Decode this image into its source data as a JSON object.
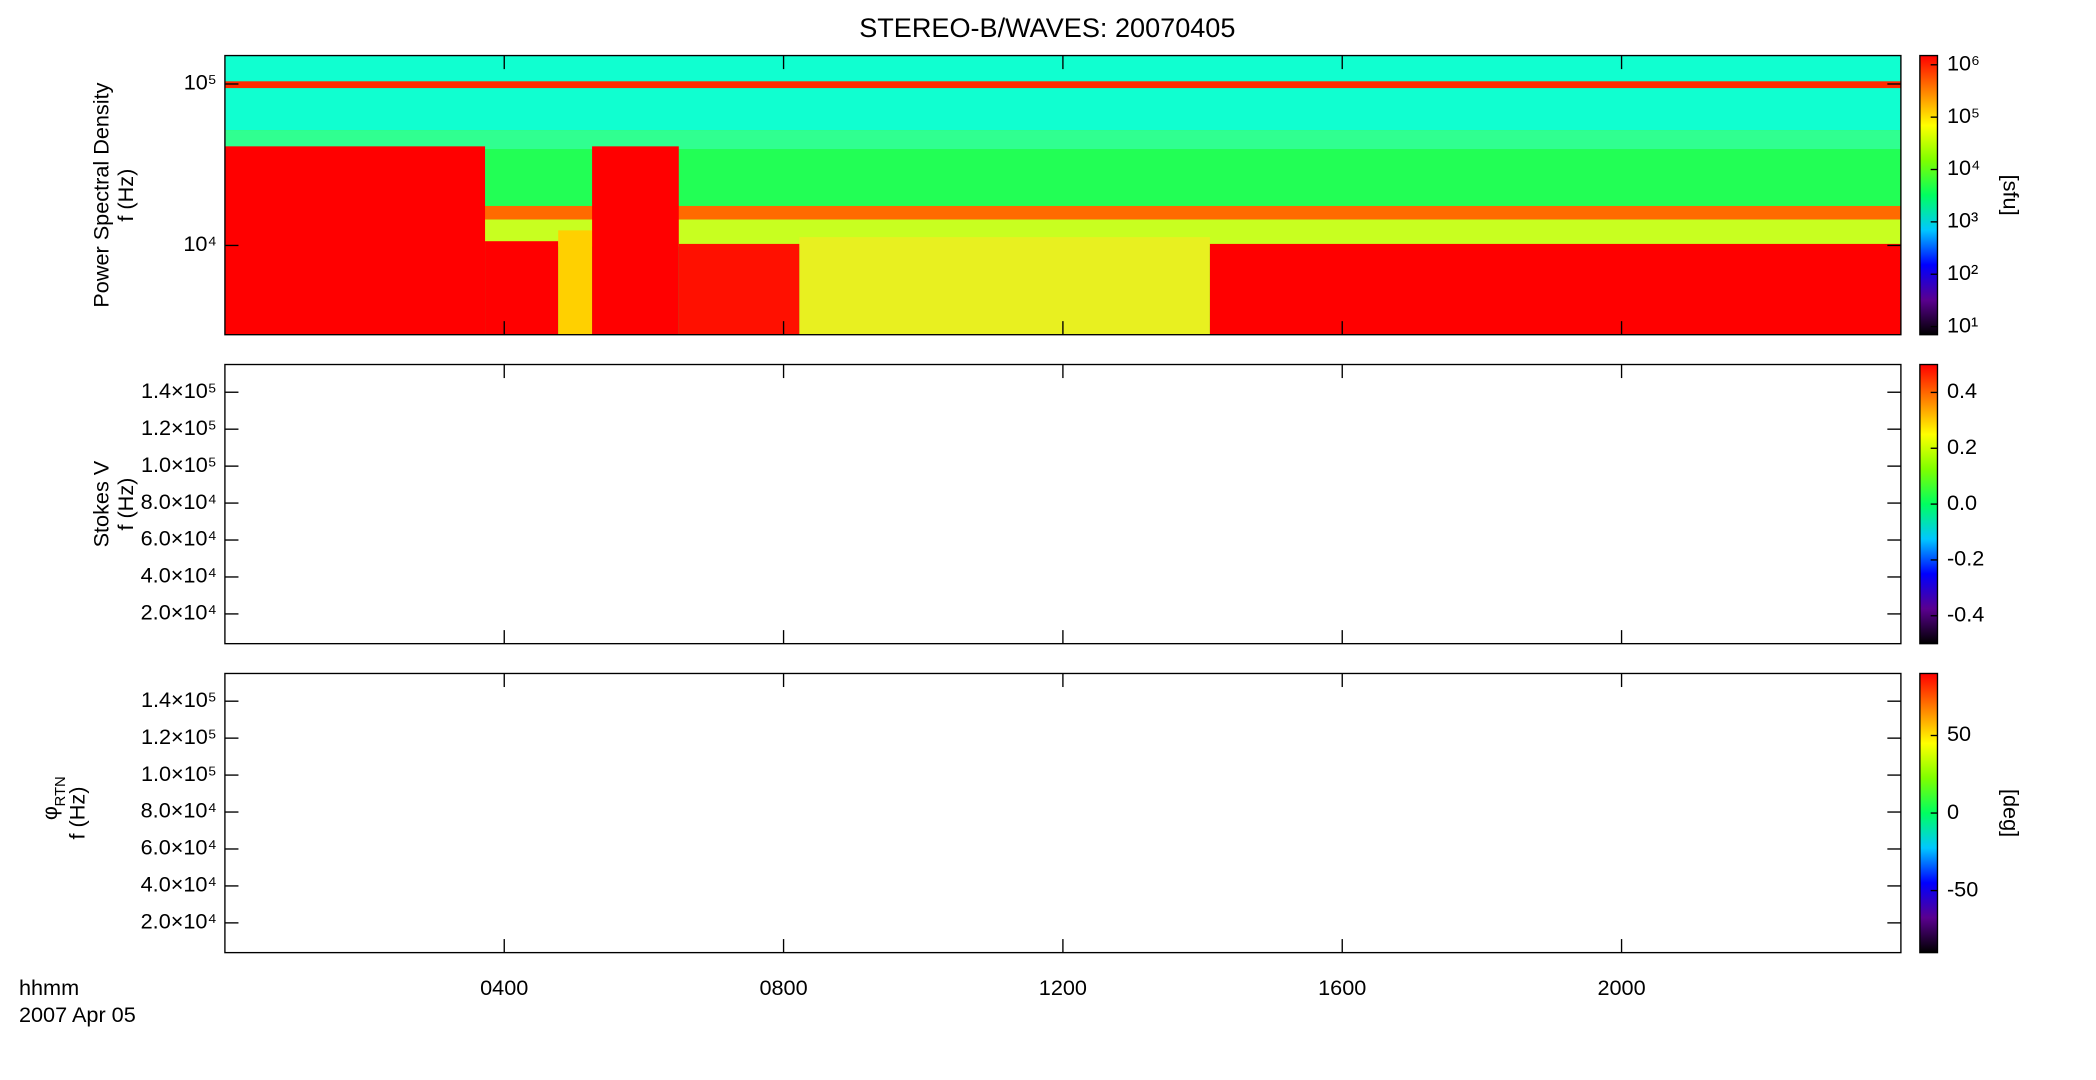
{
  "chart_data": [
    {
      "type": "spectrogram",
      "title": "STEREO-B/WAVES: 20070405",
      "ylabel": "Power Spectral Density",
      "ylabel2": "f (Hz)",
      "ylog": true,
      "ylim": [
        2800,
        150000
      ],
      "yticks": [
        {
          "value": 10000,
          "label": "10⁴"
        },
        {
          "value": 100000,
          "label": "10⁵"
        }
      ],
      "xlim": [
        0,
        24
      ],
      "colorbar_label": "[sfu]",
      "clog": true,
      "clim": [
        7,
        1500000
      ],
      "cticks": [
        {
          "value": 10,
          "label": "10¹"
        },
        {
          "value": 100,
          "label": "10²"
        },
        {
          "value": 1000,
          "label": "10³"
        },
        {
          "value": 10000,
          "label": "10⁴"
        },
        {
          "value": 100000,
          "label": "10⁵"
        },
        {
          "value": 1000000,
          "label": "10⁶"
        }
      ],
      "colormap": [
        "#000000",
        "#5a0090",
        "#0000ff",
        "#00c8ff",
        "#00ff60",
        "#7fff00",
        "#ffff00",
        "#ff8000",
        "#ff0000"
      ]
    },
    {
      "type": "spectrogram",
      "ylabel": "Stokes V",
      "ylabel2": "f (Hz)",
      "ylog": false,
      "ylim": [
        3900,
        155000
      ],
      "yticks": [
        {
          "value": 20000,
          "label": "2.0×10⁴"
        },
        {
          "value": 40000,
          "label": "4.0×10⁴"
        },
        {
          "value": 60000,
          "label": "6.0×10⁴"
        },
        {
          "value": 80000,
          "label": "8.0×10⁴"
        },
        {
          "value": 100000,
          "label": "1.0×10⁵"
        },
        {
          "value": 120000,
          "label": "1.2×10⁵"
        },
        {
          "value": 140000,
          "label": "1.4×10⁵"
        }
      ],
      "xlim": [
        0,
        24
      ],
      "clog": false,
      "clim": [
        -0.5,
        0.5
      ],
      "cticks": [
        -0.4,
        -0.2,
        {
          "value": 0,
          "label": "0.0"
        },
        0.2,
        0.4
      ],
      "colormap": [
        "#000000",
        "#5a0090",
        "#0000ff",
        "#00c8ff",
        "#00ff60",
        "#7fff00",
        "#ffff00",
        "#ff8000",
        "#ff0000"
      ]
    },
    {
      "type": "spectrogram",
      "ylabel": "φ",
      "ylabel_sub": "RTN",
      "ylabel2": "f (Hz)",
      "ylog": false,
      "ylim": [
        3900,
        155000
      ],
      "yticks": [
        {
          "value": 20000,
          "label": "2.0×10⁴"
        },
        {
          "value": 40000,
          "label": "4.0×10⁴"
        },
        {
          "value": 60000,
          "label": "6.0×10⁴"
        },
        {
          "value": 80000,
          "label": "8.0×10⁴"
        },
        {
          "value": 100000,
          "label": "1.0×10⁵"
        },
        {
          "value": 120000,
          "label": "1.2×10⁵"
        },
        {
          "value": 140000,
          "label": "1.4×10⁵"
        }
      ],
      "xlim": [
        0,
        24
      ],
      "xlabel": "hhmm",
      "xlabel2": "2007 Apr 05",
      "xticks": [
        {
          "value": 4,
          "label": "0400"
        },
        {
          "value": 8,
          "label": "0800"
        },
        {
          "value": 12,
          "label": "1200"
        },
        {
          "value": 16,
          "label": "1600"
        },
        {
          "value": 20,
          "label": "2000"
        }
      ],
      "colorbar_label": "[deg]",
      "clog": false,
      "clim": [
        -90,
        90
      ],
      "cticks": [
        -50,
        0,
        50
      ],
      "colormap": [
        "#000000",
        "#5a0090",
        "#0000ff",
        "#00c8ff",
        "#00ff60",
        "#7fff00",
        "#ffff00",
        "#ff8000",
        "#ff0000"
      ]
    }
  ]
}
